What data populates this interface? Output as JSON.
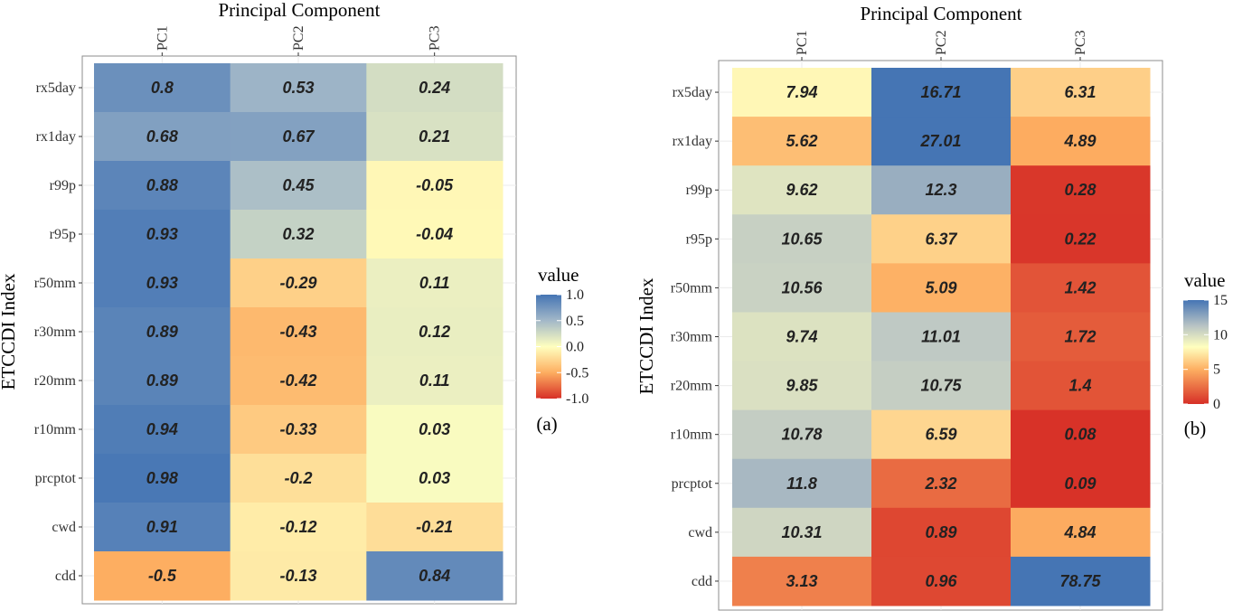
{
  "chart_data": [
    {
      "type": "heatmap",
      "panel_label": "(a)",
      "title": "Principal Component",
      "ylabel": "ETCCDI Index",
      "columns": [
        "PC1",
        "PC2",
        "PC3"
      ],
      "rows": [
        "rx5day",
        "rx1day",
        "r99p",
        "r95p",
        "r50mm",
        "r30mm",
        "r20mm",
        "r10mm",
        "prcptot",
        "cwd",
        "cdd"
      ],
      "values": [
        [
          "0.8",
          "0.53",
          "0.24"
        ],
        [
          "0.68",
          "0.67",
          "0.21"
        ],
        [
          "0.88",
          "0.45",
          "-0.05"
        ],
        [
          "0.93",
          "0.32",
          "-0.04"
        ],
        [
          "0.93",
          "-0.29",
          "0.11"
        ],
        [
          "0.89",
          "-0.43",
          "0.12"
        ],
        [
          "0.89",
          "-0.42",
          "0.11"
        ],
        [
          "0.94",
          "-0.33",
          "0.03"
        ],
        [
          "0.98",
          "-0.2",
          "0.03"
        ],
        [
          "0.91",
          "-0.12",
          "-0.21"
        ],
        [
          "-0.5",
          "-0.13",
          "0.84"
        ]
      ],
      "legend": {
        "title": "value",
        "range": [
          -1,
          1
        ],
        "ticks": [
          "1.0",
          "0.5",
          "0.0",
          "-0.5",
          "-1.0"
        ],
        "colors": [
          "#4575b4",
          "#91a9c4",
          "#ffffbf",
          "#fdae61",
          "#d73027"
        ]
      }
    },
    {
      "type": "heatmap",
      "panel_label": "(b)",
      "title": "Principal Component",
      "ylabel": "ETCCDI Index",
      "columns": [
        "PC1",
        "PC2",
        "PC3"
      ],
      "rows": [
        "rx5day",
        "rx1day",
        "r99p",
        "r95p",
        "r50mm",
        "r30mm",
        "r20mm",
        "r10mm",
        "prcptot",
        "cwd",
        "cdd"
      ],
      "values": [
        [
          "7.94",
          "16.71",
          "6.31"
        ],
        [
          "5.62",
          "27.01",
          "4.89"
        ],
        [
          "9.62",
          "12.3",
          "0.28"
        ],
        [
          "10.65",
          "6.37",
          "0.22"
        ],
        [
          "10.56",
          "5.09",
          "1.42"
        ],
        [
          "9.74",
          "11.01",
          "1.72"
        ],
        [
          "9.85",
          "10.75",
          "1.4"
        ],
        [
          "10.78",
          "6.59",
          "0.08"
        ],
        [
          "11.8",
          "2.32",
          "0.09"
        ],
        [
          "10.31",
          "0.89",
          "4.84"
        ],
        [
          "3.13",
          "0.96",
          "78.75"
        ]
      ],
      "legend": {
        "title": "value",
        "range": [
          0,
          15
        ],
        "ticks": [
          "15",
          "10",
          "5",
          "0"
        ],
        "colors": [
          "#4575b4",
          "#b9c4c4",
          "#ffffbf",
          "#fdae61",
          "#d73027"
        ]
      }
    }
  ]
}
